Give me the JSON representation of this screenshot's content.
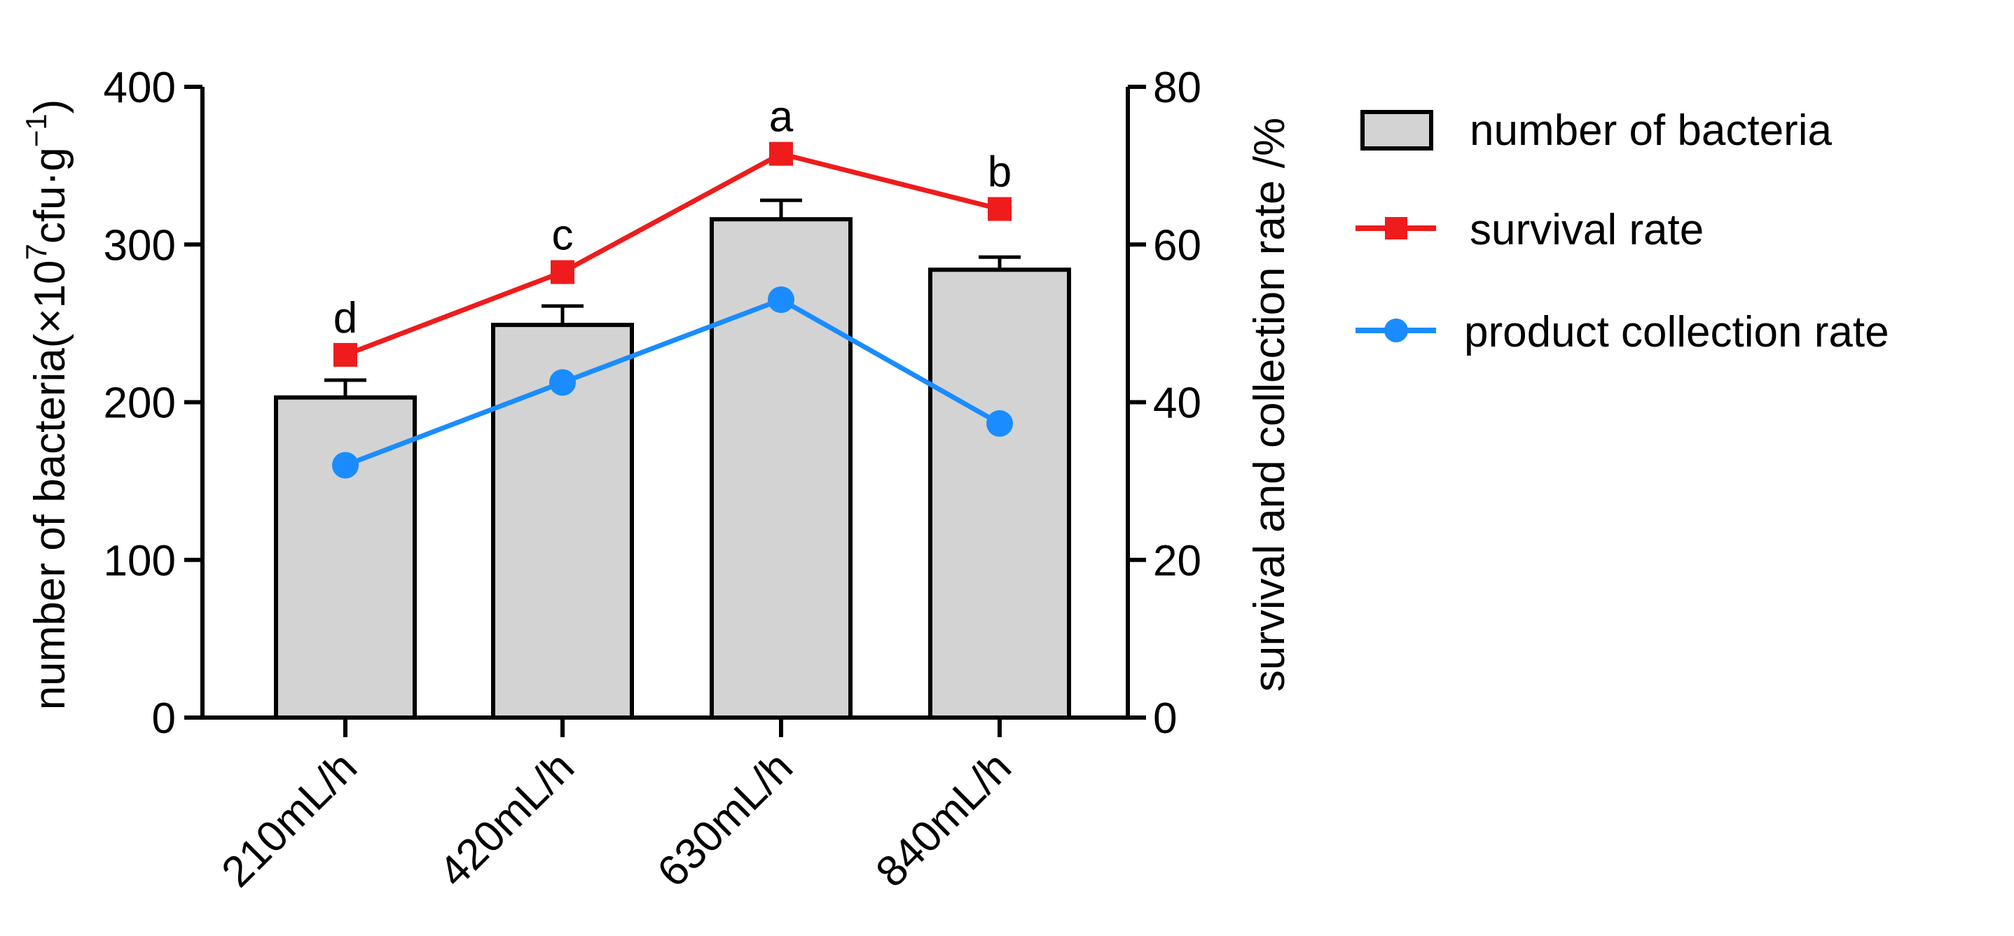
{
  "chart_data": {
    "type": "bar+line",
    "categories": [
      "210mL/h",
      "420mL/h",
      "630mL/h",
      "840mL/h"
    ],
    "bars": {
      "name": "number of bacteria",
      "values": [
        203,
        249,
        316,
        284
      ],
      "errors": [
        11,
        12,
        12,
        8
      ],
      "color": "#d3d3d3",
      "axis": "left"
    },
    "series": [
      {
        "name": "survival rate",
        "values": [
          46,
          56.5,
          71.5,
          64.5
        ],
        "color": "#ee1c1c",
        "marker": "square",
        "axis": "right"
      },
      {
        "name": "product collection rate",
        "values": [
          32,
          42.5,
          53,
          37.3
        ],
        "color": "#1a8cff",
        "marker": "circle",
        "axis": "right"
      }
    ],
    "significance_letters": [
      "d",
      "c",
      "a",
      "b"
    ],
    "left_axis": {
      "label_prefix": "number of bacteria(×10",
      "label_exp1": "7",
      "label_mid": "cfu·g",
      "label_exp2": "−1",
      "label_suffix": ")",
      "ylim": [
        0,
        400
      ],
      "ticks": [
        "0",
        "100",
        "200",
        "300",
        "400"
      ],
      "tick_values": [
        0,
        100,
        200,
        300,
        400
      ]
    },
    "right_axis": {
      "label": "survival and collection rate /%",
      "ylim": [
        0,
        80
      ],
      "ticks": [
        "0",
        "20",
        "40",
        "60",
        "80"
      ],
      "tick_values": [
        0,
        20,
        40,
        60,
        80
      ]
    },
    "legend": {
      "position": "right",
      "items": [
        "number of bacteria",
        "survival rate",
        "product collection rate"
      ]
    }
  }
}
